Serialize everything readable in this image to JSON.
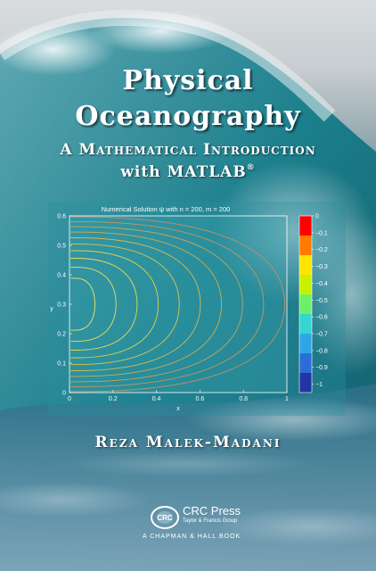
{
  "cover": {
    "title_line1": "Physical",
    "title_line2": "Oceanography",
    "subtitle_line1": "A Mathematical Introduction",
    "subtitle_line2": "with MATLAB",
    "subtitle_mark": "®",
    "author": "Reza Malek-Madani",
    "publisher_name": "CRC Press",
    "publisher_group": "Taylor & Francis Group",
    "publisher_imprint": "A CHAPMAN & HALL BOOK",
    "logo_text": "CRC",
    "colors": {
      "ocean_teal": "#1f7a88",
      "sky_gray": "#d9dde0",
      "title_white": "#ffffff"
    }
  },
  "chart_data": {
    "type": "contour",
    "title": "Numerical Solution ψ with n = 200, m = 200",
    "xlabel": "x",
    "ylabel": "y",
    "xlim": [
      0,
      1
    ],
    "ylim": [
      0,
      0.6
    ],
    "x_ticks": [
      "0",
      "0.2",
      "0.4",
      "0.6",
      "0.8",
      "1"
    ],
    "y_ticks": [
      "0",
      "0.1",
      "0.2",
      "0.3",
      "0.4",
      "0.5",
      "0.6"
    ],
    "contour_levels": [
      -0.05,
      -0.1,
      -0.15,
      -0.2,
      -0.3,
      -0.4,
      -0.5,
      -0.6,
      -0.7,
      -0.8
    ],
    "colorbar": {
      "range": [
        -1.05,
        0
      ],
      "ticks": [
        "0",
        "−0.1",
        "−0.2",
        "−0.3",
        "−0.4",
        "−0.5",
        "−0.6",
        "−0.7",
        "−0.8",
        "−0.9",
        "−1"
      ],
      "tick_values": [
        0,
        -0.1,
        -0.2,
        -0.3,
        -0.4,
        -0.5,
        -0.6,
        -0.7,
        -0.8,
        -0.9,
        -1.0
      ]
    }
  }
}
